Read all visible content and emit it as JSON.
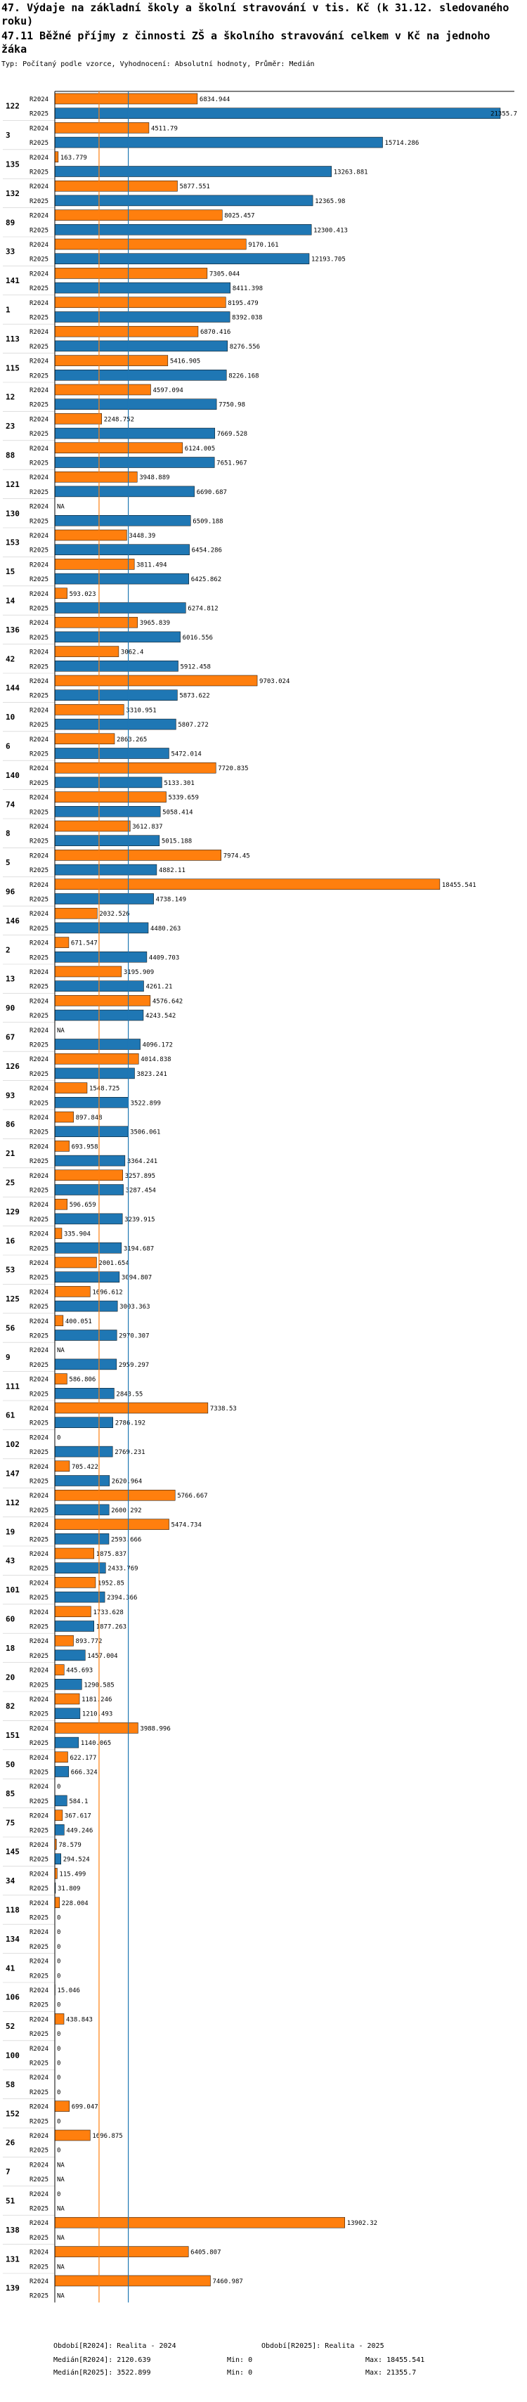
{
  "header": {
    "title": "47. Výdaje na základní školy a školní stravování v tis. Kč (k 31.12. sledovaného roku)",
    "subtitle": "47.11 Běžné příjmy z činnosti ZŠ a školního stravování celkem v Kč na jednoho žáka",
    "type_line": "Typ: Počítaný podle vzorce, Vyhodnocení: Absolutní hodnoty, Průměr: Medián"
  },
  "chart_data": {
    "type": "bar",
    "orientation": "horizontal-grouped",
    "title": "47.11 Běžné příjmy z činnosti ZŠ a školního stravování celkem v Kč na jednoho žáka",
    "series_names": [
      "R2024",
      "R2025"
    ],
    "colors": {
      "R2024": "#ff7f0e",
      "R2025": "#1f77b4",
      "median_2024_line": "#ff7f0e",
      "median_2025_line": "#1f77b4"
    },
    "xlim": [
      0,
      21355.7
    ],
    "median_lines": {
      "R2024": 2120.639,
      "R2025": 3522.899
    },
    "groups": [
      {
        "id": "122",
        "r2024": "6834.944",
        "r2025": "21355.7"
      },
      {
        "id": "3",
        "r2024": "4511.79",
        "r2025": "15714.286"
      },
      {
        "id": "135",
        "r2024": "163.779",
        "r2025": "13263.881"
      },
      {
        "id": "132",
        "r2024": "5877.551",
        "r2025": "12365.98"
      },
      {
        "id": "89",
        "r2024": "8025.457",
        "r2025": "12300.413"
      },
      {
        "id": "33",
        "r2024": "9170.161",
        "r2025": "12193.705"
      },
      {
        "id": "141",
        "r2024": "7305.044",
        "r2025": "8411.398"
      },
      {
        "id": "1",
        "r2024": "8195.479",
        "r2025": "8392.038"
      },
      {
        "id": "113",
        "r2024": "6870.416",
        "r2025": "8276.556"
      },
      {
        "id": "115",
        "r2024": "5416.905",
        "r2025": "8226.168"
      },
      {
        "id": "12",
        "r2024": "4597.094",
        "r2025": "7750.98"
      },
      {
        "id": "23",
        "r2024": "2248.752",
        "r2025": "7669.528"
      },
      {
        "id": "88",
        "r2024": "6124.005",
        "r2025": "7651.967"
      },
      {
        "id": "121",
        "r2024": "3948.889",
        "r2025": "6690.687"
      },
      {
        "id": "130",
        "r2024": "NA",
        "r2025": "6509.188"
      },
      {
        "id": "153",
        "r2024": "3448.39",
        "r2025": "6454.286"
      },
      {
        "id": "15",
        "r2024": "3811.494",
        "r2025": "6425.862"
      },
      {
        "id": "14",
        "r2024": "593.023",
        "r2025": "6274.812"
      },
      {
        "id": "136",
        "r2024": "3965.839",
        "r2025": "6016.556"
      },
      {
        "id": "42",
        "r2024": "3062.4",
        "r2025": "5912.458"
      },
      {
        "id": "144",
        "r2024": "9703.024",
        "r2025": "5873.622"
      },
      {
        "id": "10",
        "r2024": "3310.951",
        "r2025": "5807.272"
      },
      {
        "id": "6",
        "r2024": "2863.265",
        "r2025": "5472.014"
      },
      {
        "id": "140",
        "r2024": "7720.835",
        "r2025": "5133.301"
      },
      {
        "id": "74",
        "r2024": "5339.659",
        "r2025": "5058.414"
      },
      {
        "id": "8",
        "r2024": "3612.837",
        "r2025": "5015.188"
      },
      {
        "id": "5",
        "r2024": "7974.45",
        "r2025": "4882.11"
      },
      {
        "id": "96",
        "r2024": "18455.541",
        "r2025": "4738.149"
      },
      {
        "id": "146",
        "r2024": "2032.526",
        "r2025": "4480.263"
      },
      {
        "id": "2",
        "r2024": "671.547",
        "r2025": "4409.703"
      },
      {
        "id": "13",
        "r2024": "3195.909",
        "r2025": "4261.21"
      },
      {
        "id": "90",
        "r2024": "4576.642",
        "r2025": "4243.542"
      },
      {
        "id": "67",
        "r2024": "NA",
        "r2025": "4096.172"
      },
      {
        "id": "126",
        "r2024": "4014.838",
        "r2025": "3823.241"
      },
      {
        "id": "93",
        "r2024": "1548.725",
        "r2025": "3522.899"
      },
      {
        "id": "86",
        "r2024": "897.848",
        "r2025": "3506.061"
      },
      {
        "id": "21",
        "r2024": "693.958",
        "r2025": "3364.241"
      },
      {
        "id": "25",
        "r2024": "3257.895",
        "r2025": "3287.454"
      },
      {
        "id": "129",
        "r2024": "596.659",
        "r2025": "3239.915"
      },
      {
        "id": "16",
        "r2024": "335.904",
        "r2025": "3194.687"
      },
      {
        "id": "53",
        "r2024": "2001.654",
        "r2025": "3094.807"
      },
      {
        "id": "125",
        "r2024": "1696.612",
        "r2025": "3003.363"
      },
      {
        "id": "56",
        "r2024": "400.051",
        "r2025": "2970.307"
      },
      {
        "id": "9",
        "r2024": "NA",
        "r2025": "2959.297"
      },
      {
        "id": "111",
        "r2024": "586.806",
        "r2025": "2843.55"
      },
      {
        "id": "61",
        "r2024": "7338.53",
        "r2025": "2786.192"
      },
      {
        "id": "102",
        "r2024": "0",
        "r2025": "2769.231"
      },
      {
        "id": "147",
        "r2024": "705.422",
        "r2025": "2620.964"
      },
      {
        "id": "112",
        "r2024": "5766.667",
        "r2025": "2600.292"
      },
      {
        "id": "19",
        "r2024": "5474.734",
        "r2025": "2593.666"
      },
      {
        "id": "43",
        "r2024": "1875.837",
        "r2025": "2433.769"
      },
      {
        "id": "101",
        "r2024": "1952.85",
        "r2025": "2394.366"
      },
      {
        "id": "60",
        "r2024": "1733.628",
        "r2025": "1877.263"
      },
      {
        "id": "18",
        "r2024": "893.772",
        "r2025": "1457.004"
      },
      {
        "id": "20",
        "r2024": "445.693",
        "r2025": "1290.585"
      },
      {
        "id": "82",
        "r2024": "1181.246",
        "r2025": "1210.493"
      },
      {
        "id": "151",
        "r2024": "3988.996",
        "r2025": "1140.065"
      },
      {
        "id": "50",
        "r2024": "622.177",
        "r2025": "666.324"
      },
      {
        "id": "85",
        "r2024": "0",
        "r2025": "584.1"
      },
      {
        "id": "75",
        "r2024": "367.617",
        "r2025": "449.246"
      },
      {
        "id": "145",
        "r2024": "78.579",
        "r2025": "294.524"
      },
      {
        "id": "34",
        "r2024": "115.499",
        "r2025": "31.809"
      },
      {
        "id": "118",
        "r2024": "228.004",
        "r2025": "0"
      },
      {
        "id": "134",
        "r2024": "0",
        "r2025": "0"
      },
      {
        "id": "41",
        "r2024": "0",
        "r2025": "0"
      },
      {
        "id": "106",
        "r2024": "15.046",
        "r2025": "0"
      },
      {
        "id": "52",
        "r2024": "438.843",
        "r2025": "0"
      },
      {
        "id": "100",
        "r2024": "0",
        "r2025": "0"
      },
      {
        "id": "58",
        "r2024": "0",
        "r2025": "0"
      },
      {
        "id": "152",
        "r2024": "699.047",
        "r2025": "0"
      },
      {
        "id": "26",
        "r2024": "1696.875",
        "r2025": "0"
      },
      {
        "id": "7",
        "r2024": "NA",
        "r2025": "NA"
      },
      {
        "id": "51",
        "r2024": "0",
        "r2025": "NA"
      },
      {
        "id": "138",
        "r2024": "13902.32",
        "r2025": "NA"
      },
      {
        "id": "131",
        "r2024": "6405.807",
        "r2025": "NA"
      },
      {
        "id": "139",
        "r2024": "7460.987",
        "r2025": "NA"
      }
    ]
  },
  "footer": {
    "obdobi_2024": "Období[R2024]: Realita - 2024",
    "obdobi_2025": "Období[R2025]: Realita - 2025",
    "median_2024": "Medián[R2024]: 2120.639",
    "median_2025": "Medián[R2025]: 3522.899",
    "min_2024": "Min: 0",
    "min_2025": "Min: 0",
    "max_2024": "Max: 18455.541",
    "max_2025": "Max: 21355.7"
  }
}
